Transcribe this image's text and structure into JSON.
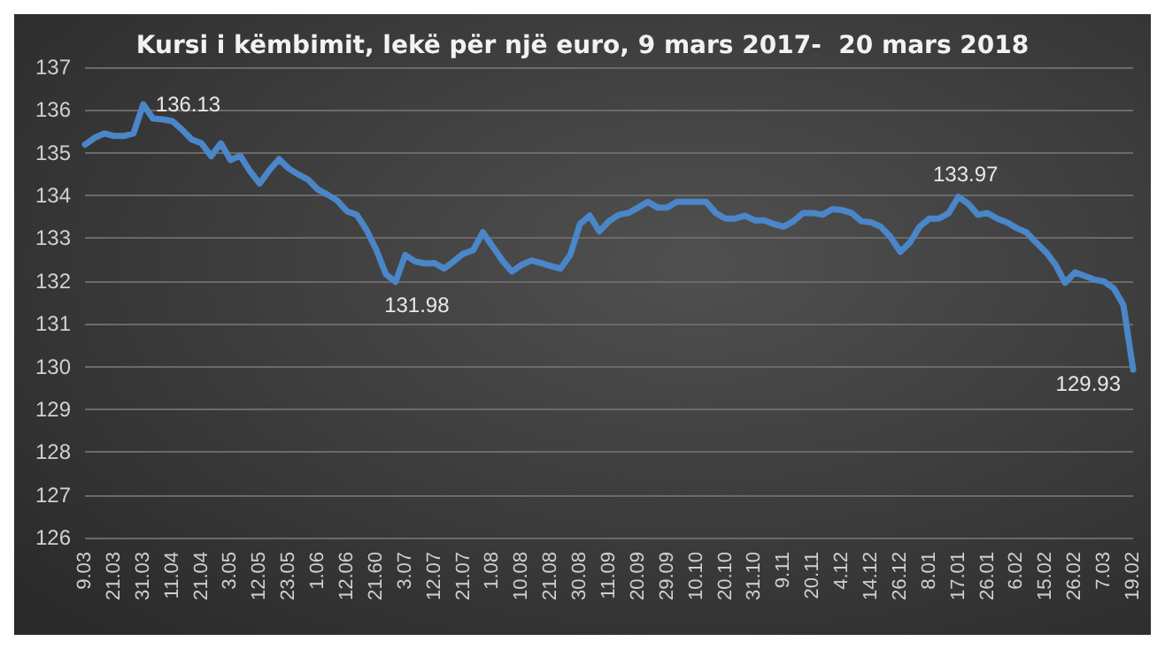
{
  "chart_data": {
    "type": "line",
    "title": "Kursi i këmbimit, lekë për një euro, 9 mars 2017-  20 mars 2018",
    "categories": [
      "9.03",
      null,
      null,
      "21.03",
      null,
      null,
      "31.03",
      null,
      null,
      "11.04",
      null,
      null,
      "21.04",
      null,
      null,
      "3.05",
      null,
      null,
      "12.05",
      null,
      null,
      "23.05",
      null,
      null,
      "1.06",
      null,
      null,
      "12.06",
      null,
      null,
      "21.60",
      null,
      null,
      "3.07",
      null,
      null,
      "12.07",
      null,
      null,
      "21.07",
      null,
      null,
      "1.08",
      null,
      null,
      "10.08",
      null,
      null,
      "21.08",
      null,
      null,
      "30.08",
      null,
      null,
      "11.09",
      null,
      null,
      "20.09",
      null,
      null,
      "29.09",
      null,
      null,
      "10.10",
      null,
      null,
      "20.10",
      null,
      null,
      "31.10",
      null,
      null,
      "9.11",
      null,
      null,
      "20.11",
      null,
      null,
      "4.12",
      null,
      null,
      "14.12",
      null,
      null,
      "26.12",
      null,
      null,
      "8.01",
      null,
      null,
      "17.01",
      null,
      null,
      "26.01",
      null,
      null,
      "6.02",
      null,
      null,
      "15.02",
      null,
      null,
      "26.02",
      null,
      null,
      "7.03",
      null,
      null,
      "19.02"
    ],
    "series": [
      {
        "color": "#4a86c8",
        "values": [
          135.19,
          135.35,
          135.45,
          135.39,
          135.39,
          135.45,
          136.13,
          135.8,
          135.78,
          135.74,
          135.54,
          135.31,
          135.22,
          134.92,
          135.22,
          134.83,
          134.93,
          134.57,
          134.28,
          134.59,
          134.85,
          134.63,
          134.49,
          134.37,
          134.14,
          134.02,
          133.88,
          133.63,
          133.55,
          133.2,
          132.74,
          132.16,
          131.98,
          132.61,
          132.46,
          132.41,
          132.42,
          132.29,
          132.46,
          132.64,
          132.72,
          133.14,
          132.81,
          132.48,
          132.22,
          132.38,
          132.48,
          132.42,
          132.35,
          132.29,
          132.61,
          133.33,
          133.53,
          133.16,
          133.4,
          133.55,
          133.59,
          133.72,
          133.85,
          133.72,
          133.72,
          133.85,
          133.85,
          133.85,
          133.85,
          133.59,
          133.46,
          133.46,
          133.53,
          133.42,
          133.42,
          133.33,
          133.27,
          133.4,
          133.59,
          133.59,
          133.55,
          133.68,
          133.66,
          133.59,
          133.4,
          133.37,
          133.27,
          133.03,
          132.68,
          132.9,
          133.27,
          133.46,
          133.46,
          133.59,
          133.97,
          133.81,
          133.55,
          133.59,
          133.46,
          133.37,
          133.24,
          133.14,
          132.9,
          132.68,
          132.38,
          131.96,
          132.2,
          132.12,
          132.03,
          131.99,
          131.83,
          131.44,
          129.93
        ],
        "value_labels": [
          null,
          null,
          null,
          null,
          null,
          null,
          "136.13",
          null,
          null,
          null,
          null,
          null,
          null,
          null,
          null,
          null,
          null,
          null,
          null,
          null,
          null,
          null,
          null,
          null,
          null,
          null,
          null,
          null,
          null,
          null,
          null,
          null,
          "131.98",
          null,
          null,
          null,
          null,
          null,
          null,
          null,
          null,
          null,
          null,
          null,
          null,
          null,
          null,
          null,
          null,
          null,
          null,
          null,
          null,
          null,
          null,
          null,
          null,
          null,
          null,
          null,
          null,
          null,
          null,
          null,
          null,
          null,
          null,
          null,
          null,
          null,
          null,
          null,
          null,
          null,
          null,
          null,
          null,
          null,
          null,
          null,
          null,
          null,
          null,
          null,
          null,
          null,
          null,
          null,
          null,
          null,
          "133.97",
          null,
          null,
          null,
          null,
          null,
          null,
          null,
          null,
          null,
          null,
          null,
          null,
          null,
          null,
          null,
          null,
          null,
          "129.93"
        ]
      }
    ],
    "ylim": [
      126,
      137
    ],
    "yticks": [
      126,
      127,
      128,
      129,
      130,
      131,
      132,
      133,
      134,
      135,
      136,
      137
    ],
    "grid": "y",
    "marker": "none",
    "line_style": "solid"
  }
}
